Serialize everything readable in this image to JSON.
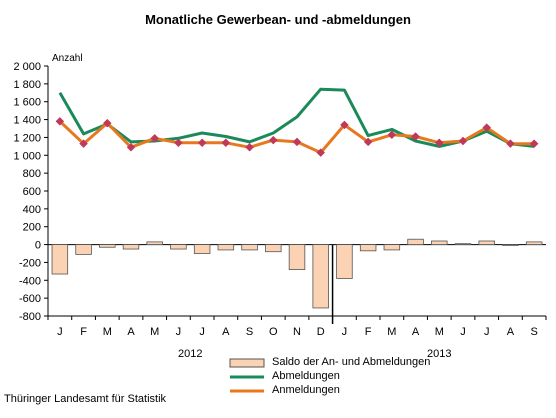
{
  "title": "Monatliche Gewerbean- und -abmeldungen",
  "source": "Thüringer Landesamt für Statistik",
  "colors": {
    "abmeldungen": "#1a8a5a",
    "anmeldungen": "#e8781e",
    "marker": "#c0395a",
    "saldo_fill": "#fbd3b4",
    "saldo_stroke": "#555555"
  },
  "chart_data": {
    "type": "bar",
    "title": "Monatliche Gewerbean- und -abmeldungen",
    "ylabel": "Anzahl",
    "ylim": [
      -800,
      2000
    ],
    "yticks": [
      2000,
      1800,
      1600,
      1400,
      1200,
      1000,
      800,
      600,
      400,
      200,
      0,
      -200,
      -400,
      -600,
      -800
    ],
    "ytick_labels": [
      "2 000",
      "1 800",
      "1 600",
      "1 400",
      "1 200",
      "1 000",
      "800",
      "600",
      "400",
      "200",
      "0",
      "-200",
      "-400",
      "-600",
      "-800"
    ],
    "categories": [
      "J",
      "F",
      "M",
      "A",
      "M",
      "J",
      "J",
      "A",
      "S",
      "O",
      "N",
      "D",
      "J",
      "F",
      "M",
      "A",
      "M",
      "J",
      "J",
      "A",
      "S"
    ],
    "years": [
      {
        "label": "2012",
        "first_index": 0,
        "last_index": 11
      },
      {
        "label": "2013",
        "first_index": 12,
        "last_index": 20
      }
    ],
    "grid": false,
    "legend_position": "bottom",
    "series": [
      {
        "name": "Saldo der An- und Abmeldungen",
        "type": "bar",
        "values": [
          -330,
          -110,
          -30,
          -50,
          30,
          -50,
          -100,
          -60,
          -60,
          -80,
          -280,
          -710,
          -380,
          -70,
          -60,
          60,
          40,
          10,
          40,
          -10,
          30
        ]
      },
      {
        "name": "Abmeldungen",
        "type": "line",
        "values": [
          1700,
          1240,
          1350,
          1150,
          1160,
          1190,
          1250,
          1210,
          1150,
          1250,
          1430,
          1740,
          1730,
          1220,
          1290,
          1160,
          1100,
          1160,
          1270,
          1130,
          1100
        ]
      },
      {
        "name": "Anmeldungen",
        "type": "line",
        "marker": "diamond",
        "values": [
          1380,
          1130,
          1360,
          1090,
          1190,
          1140,
          1140,
          1140,
          1090,
          1170,
          1150,
          1030,
          1340,
          1150,
          1230,
          1210,
          1140,
          1160,
          1310,
          1130,
          1130
        ]
      }
    ]
  }
}
